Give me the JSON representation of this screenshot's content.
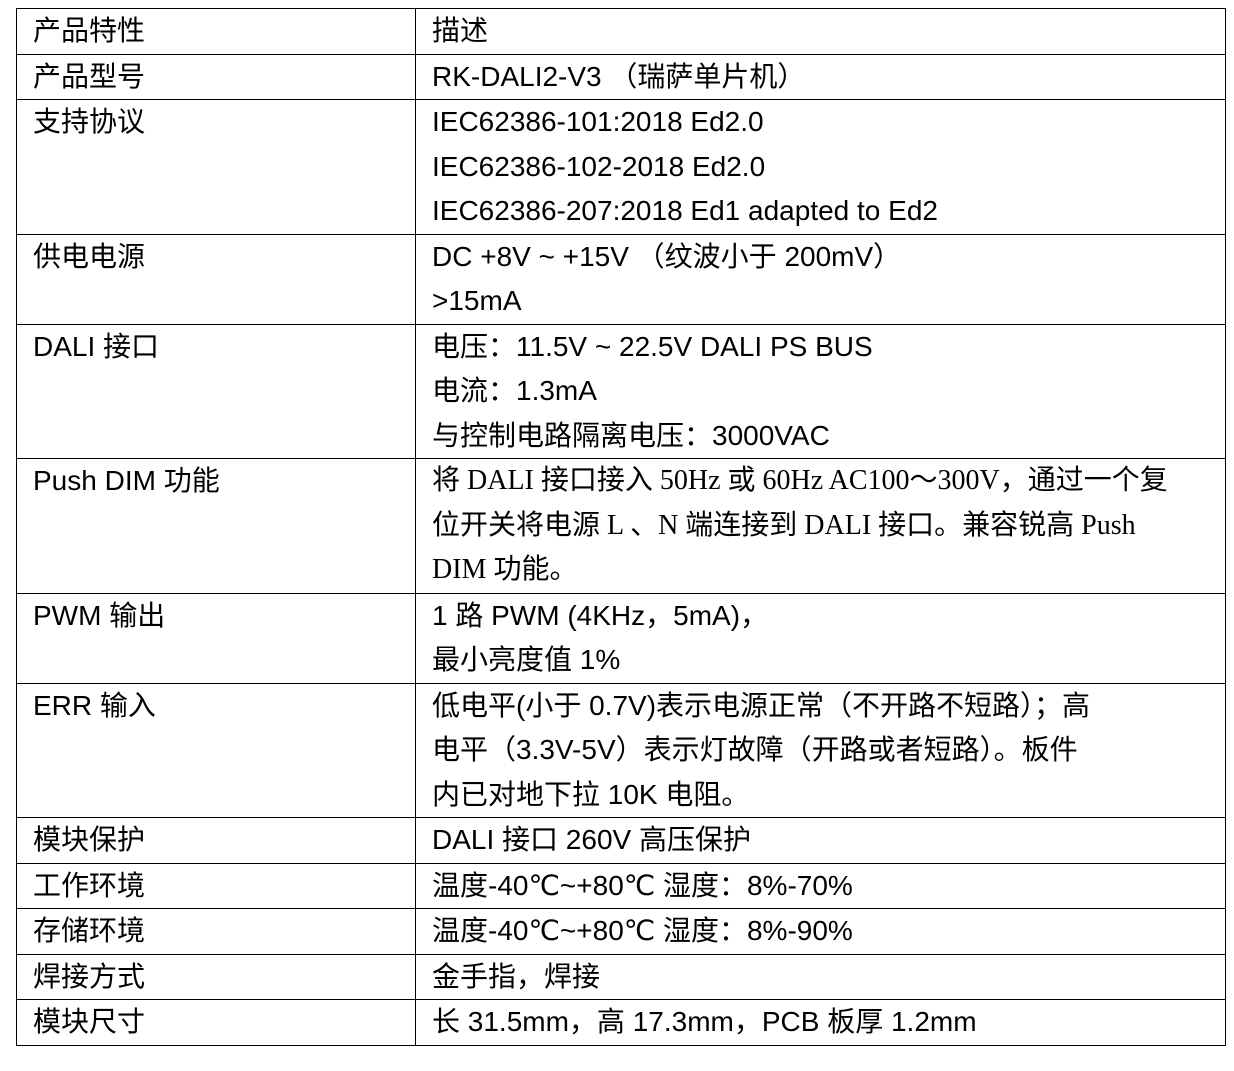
{
  "table": {
    "rows": [
      {
        "key": "产品特性",
        "lines": [
          "描述"
        ]
      },
      {
        "key": "产品型号",
        "lines": [
          "RK-DALI2-V3 （瑞萨单片机）"
        ]
      },
      {
        "key": "支持协议",
        "lines": [
          "IEC62386-101:2018 Ed2.0",
          "IEC62386-102-2018 Ed2.0",
          "IEC62386-207:2018 Ed1 adapted to Ed2"
        ]
      },
      {
        "key": "供电电源",
        "lines": [
          "DC +8V ~ +15V （纹波小于 200mV）",
          ">15mA"
        ]
      },
      {
        "key": "DALI 接口",
        "lines": [
          "电压：11.5V ~ 22.5V DALI PS BUS",
          "电流：1.3mA",
          "与控制电路隔离电压：3000VAC"
        ]
      },
      {
        "key": "Push DIM 功能",
        "lines": [
          "将 DALI 接口接入 50Hz 或 60Hz AC100～300V，通过一个复",
          "位开关将电源 L 、N 端连接到 DALI 接口。兼容锐高 Push",
          "DIM 功能。"
        ]
      },
      {
        "key": "PWM 输出",
        "lines": [
          "1 路 PWM (4KHz，5mA)，",
          "最小亮度值 1%"
        ]
      },
      {
        "key": "ERR 输入",
        "lines": [
          "低电平(小于 0.7V)表示电源正常（不开路不短路）；高",
          "电平（3.3V-5V）表示灯故障（开路或者短路）。板件",
          "内已对地下拉 10K 电阻。"
        ]
      },
      {
        "key": "模块保护",
        "lines": [
          "DALI 接口 260V 高压保护"
        ]
      },
      {
        "key": "工作环境",
        "lines": [
          "温度-40℃~+80℃ 湿度：8%-70%"
        ]
      },
      {
        "key": "存储环境",
        "lines": [
          "温度-40℃~+80℃ 湿度：8%-90%"
        ]
      },
      {
        "key": "焊接方式",
        "lines": [
          "金手指，焊接"
        ]
      },
      {
        "key": "模块尺寸",
        "lines": [
          "长 31.5mm，高 17.3mm，PCB 板厚 1.2mm"
        ]
      }
    ]
  }
}
